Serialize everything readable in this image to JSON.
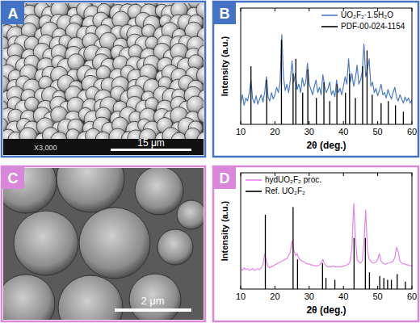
{
  "panels": [
    {
      "label": "A",
      "scale_bar": "15 μm",
      "magnification": "X3,000"
    },
    {
      "label": "B"
    },
    {
      "label": "C",
      "scale_bar": "2 μm"
    },
    {
      "label": "D"
    }
  ],
  "chart_data": [
    {
      "type": "line",
      "xlabel": "2θ (deg.)",
      "ylabel": "Intensity (a.u.)",
      "xlim": [
        10,
        60
      ],
      "xticks": [
        10,
        20,
        30,
        40,
        50,
        60
      ],
      "ylim": [
        0,
        110
      ],
      "tick_labels": "x",
      "grid": false,
      "legend": "upper right",
      "series": [
        {
          "name": "UO₂F₂·1.5H₂O",
          "type": "line",
          "color": "#4a7cc7",
          "x": [
            10,
            10.5,
            11,
            11.5,
            12,
            12.5,
            13,
            13.5,
            14,
            14.5,
            15,
            15.5,
            16,
            16.5,
            17,
            17.5,
            18,
            18.5,
            19,
            19.5,
            20,
            20.5,
            21,
            21.5,
            22,
            22.5,
            23,
            23.5,
            24,
            24.5,
            25,
            25.5,
            26,
            26.5,
            27,
            27.5,
            28,
            28.5,
            29,
            29.5,
            30,
            30.5,
            31,
            31.5,
            32,
            32.5,
            33,
            33.5,
            34,
            34.5,
            35,
            35.5,
            36,
            36.5,
            37,
            37.5,
            38,
            38.5,
            39,
            39.5,
            40,
            40.5,
            41,
            41.5,
            42,
            42.5,
            43,
            43.5,
            44,
            44.5,
            45,
            45.5,
            46,
            46.5,
            47,
            47.5,
            48,
            48.5,
            49,
            49.5,
            50,
            50.5,
            51,
            51.5,
            52,
            52.5,
            53,
            53.5,
            54,
            54.5,
            55,
            55.5,
            56,
            56.5,
            57,
            57.5,
            58,
            58.5,
            59,
            59.5,
            60
          ],
          "values": [
            20,
            28,
            18,
            25,
            22,
            30,
            42,
            24,
            20,
            27,
            19,
            24,
            28,
            21,
            30,
            45,
            26,
            22,
            30,
            24,
            28,
            35,
            30,
            40,
            85,
            45,
            32,
            38,
            30,
            42,
            60,
            40,
            48,
            33,
            38,
            30,
            44,
            36,
            40,
            58,
            38,
            33,
            28,
            36,
            42,
            30,
            35,
            28,
            47,
            36,
            30,
            34,
            40,
            28,
            32,
            26,
            42,
            30,
            34,
            28,
            36,
            45,
            38,
            62,
            40,
            48,
            36,
            44,
            56,
            38,
            42,
            50,
            76,
            45,
            52,
            62,
            36,
            40,
            30,
            34,
            27,
            32,
            38,
            28,
            30,
            25,
            33,
            28,
            24,
            30,
            35,
            26,
            22,
            28,
            24,
            20,
            26,
            22,
            25,
            20,
            23
          ]
        },
        {
          "name": "PDF-00-024-1154",
          "type": "stem",
          "color": "#000000",
          "x": [
            13.0,
            17.6,
            21.9,
            25.3,
            26.1,
            28.1,
            29.6,
            32.1,
            34.3,
            36.0,
            38.1,
            40.6,
            41.8,
            43.5,
            45.6,
            46.9,
            48.4,
            51.0,
            53.1,
            55.2,
            57.5
          ],
          "values": [
            55,
            42,
            80,
            48,
            62,
            30,
            52,
            25,
            40,
            22,
            38,
            30,
            48,
            25,
            55,
            70,
            28,
            20,
            22,
            18,
            12
          ]
        }
      ]
    },
    {
      "type": "line",
      "xlabel": "2θ (deg.)",
      "ylabel": "Intensity (a.u.)",
      "xlim": [
        10,
        60
      ],
      "xticks": [
        10,
        20,
        30,
        40,
        50,
        60
      ],
      "ylim": [
        0,
        125
      ],
      "tick_labels": "x",
      "grid": false,
      "legend": "upper left",
      "series": [
        {
          "name": "hydUO₂F₂ proc.",
          "type": "line",
          "color": "#e882e8",
          "x": [
            10,
            10.5,
            11,
            11.5,
            12,
            12.5,
            13,
            13.5,
            14,
            14.5,
            15,
            15.5,
            16,
            16.5,
            17,
            17.5,
            18,
            18.5,
            19,
            19.5,
            20,
            20.5,
            21,
            21.5,
            22,
            22.5,
            23,
            23.5,
            24,
            24.5,
            25,
            25.5,
            26,
            26.5,
            27,
            27.5,
            28,
            28.5,
            29,
            29.5,
            30,
            30.5,
            31,
            31.5,
            32,
            32.5,
            33,
            33.5,
            34,
            34.5,
            35,
            35.5,
            36,
            36.5,
            37,
            37.5,
            38,
            38.5,
            39,
            39.5,
            40,
            40.5,
            41,
            41.5,
            42,
            42.5,
            43,
            43.5,
            44,
            44.5,
            45,
            45.5,
            46,
            46.5,
            47,
            47.5,
            48,
            48.5,
            49,
            49.5,
            50,
            50.5,
            51,
            51.5,
            52,
            52.5,
            53,
            53.5,
            54,
            54.5,
            55,
            55.5,
            56,
            56.5,
            57,
            57.5,
            58,
            58.5,
            59,
            59.5,
            60
          ],
          "values": [
            22,
            20,
            23,
            21,
            22,
            20,
            21,
            22,
            20,
            21,
            22,
            21,
            23,
            26,
            38,
            30,
            24,
            23,
            24,
            25,
            26,
            27,
            28,
            29,
            30,
            31,
            32,
            33,
            36,
            40,
            52,
            42,
            36,
            38,
            33,
            31,
            30,
            29,
            28,
            27,
            27,
            26,
            26,
            25,
            25,
            25,
            26,
            28,
            32,
            27,
            25,
            24,
            24,
            24,
            25,
            24,
            24,
            24,
            24,
            24,
            25,
            25,
            26,
            27,
            30,
            45,
            92,
            55,
            32,
            29,
            28,
            30,
            50,
            85,
            42,
            32,
            30,
            28,
            28,
            29,
            32,
            38,
            30,
            28,
            27,
            27,
            28,
            28,
            29,
            30,
            34,
            45,
            40,
            30,
            28,
            27,
            27,
            26,
            26,
            25,
            25
          ]
        },
        {
          "name": "Ref. UO₂F₂",
          "type": "stem",
          "color": "#000000",
          "x": [
            17.2,
            25.3,
            26.6,
            33.9,
            34.9,
            37.5,
            43.1,
            46.4,
            47.6,
            50.6,
            51.8,
            52.9,
            54.0,
            55.7,
            58.1
          ],
          "values": [
            80,
            88,
            32,
            28,
            12,
            10,
            55,
            55,
            18,
            14,
            12,
            10,
            10,
            16,
            8
          ]
        }
      ]
    }
  ]
}
